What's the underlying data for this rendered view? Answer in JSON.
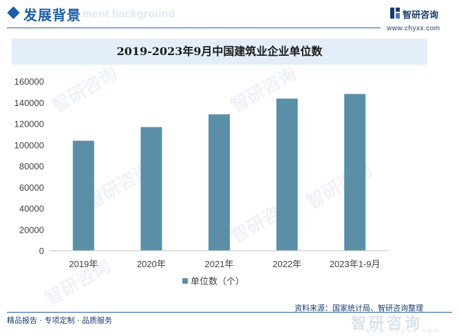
{
  "header": {
    "title": "发展背景",
    "title_watermark": "ment background",
    "logo_text": "智研咨询",
    "logo_url": "www.chyxx.com"
  },
  "colors": {
    "accent": "#1f5fa6",
    "bar": "#5b8fa8",
    "title_bar_bg": "#e3eef9"
  },
  "watermark": {
    "text": "智研咨询",
    "bottom_text": "智研咨询",
    "bottom_url": "www.chyxx.com"
  },
  "chart_data": {
    "type": "bar",
    "title": "2019-2023年9月中国建筑业企业单位数",
    "categories": [
      "2019年",
      "2020年",
      "2021年",
      "2022年",
      "2023年1-9月"
    ],
    "series": [
      {
        "name": "单位数（个）",
        "values": [
          103814,
          116716,
          128746,
          143621,
          148000
        ]
      }
    ],
    "ylim": [
      0,
      160000
    ],
    "yticks": [
      "0",
      "20000",
      "40000",
      "60000",
      "80000",
      "100000",
      "120000",
      "140000",
      "160000"
    ],
    "ytick_values": [
      0,
      20000,
      40000,
      60000,
      80000,
      100000,
      120000,
      140000,
      160000
    ],
    "grid": false,
    "legend_position": "bottom"
  },
  "footer": {
    "left": "精品报告 · 专项定制 · 品质服务",
    "source": "资料来源：国家统计局、智研咨询整理"
  }
}
